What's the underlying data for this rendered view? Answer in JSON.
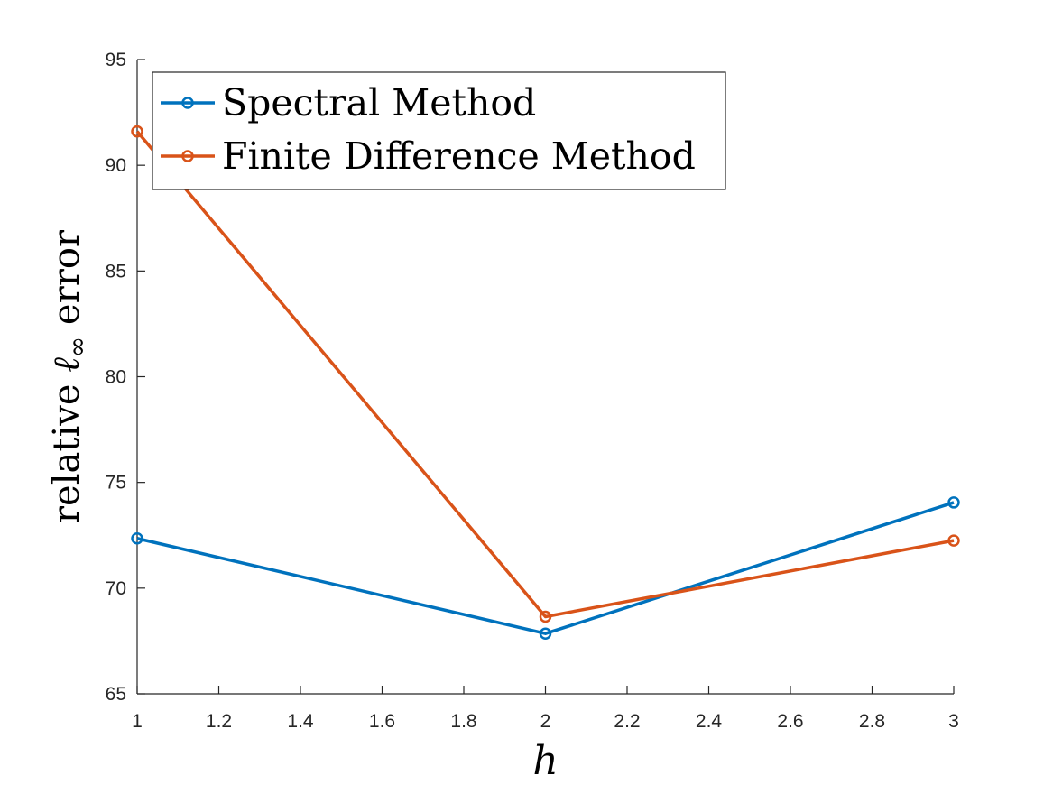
{
  "chart_data": {
    "type": "line",
    "xlabel": "h",
    "ylabel_prefix": "relative",
    "ylabel_symbol": "ℓ",
    "ylabel_subscript": "∞",
    "ylabel_suffix": "error",
    "xlim": [
      1,
      3
    ],
    "ylim": [
      65,
      95
    ],
    "xticks": [
      "1",
      "1.2",
      "1.4",
      "1.6",
      "1.8",
      "2",
      "2.2",
      "2.4",
      "2.6",
      "2.8",
      "3"
    ],
    "yticks": [
      "65",
      "70",
      "75",
      "80",
      "85",
      "90",
      "95"
    ],
    "grid": false,
    "legend_position": "top-left",
    "series": [
      {
        "name": "Spectral Method",
        "color": "#0072BD",
        "marker": "circle",
        "x": [
          1,
          2,
          3
        ],
        "y": [
          72.35,
          67.85,
          74.05
        ]
      },
      {
        "name": "Finite Difference Method",
        "color": "#D95319",
        "marker": "circle",
        "x": [
          1,
          2,
          3
        ],
        "y": [
          91.6,
          68.65,
          72.25
        ]
      }
    ]
  }
}
